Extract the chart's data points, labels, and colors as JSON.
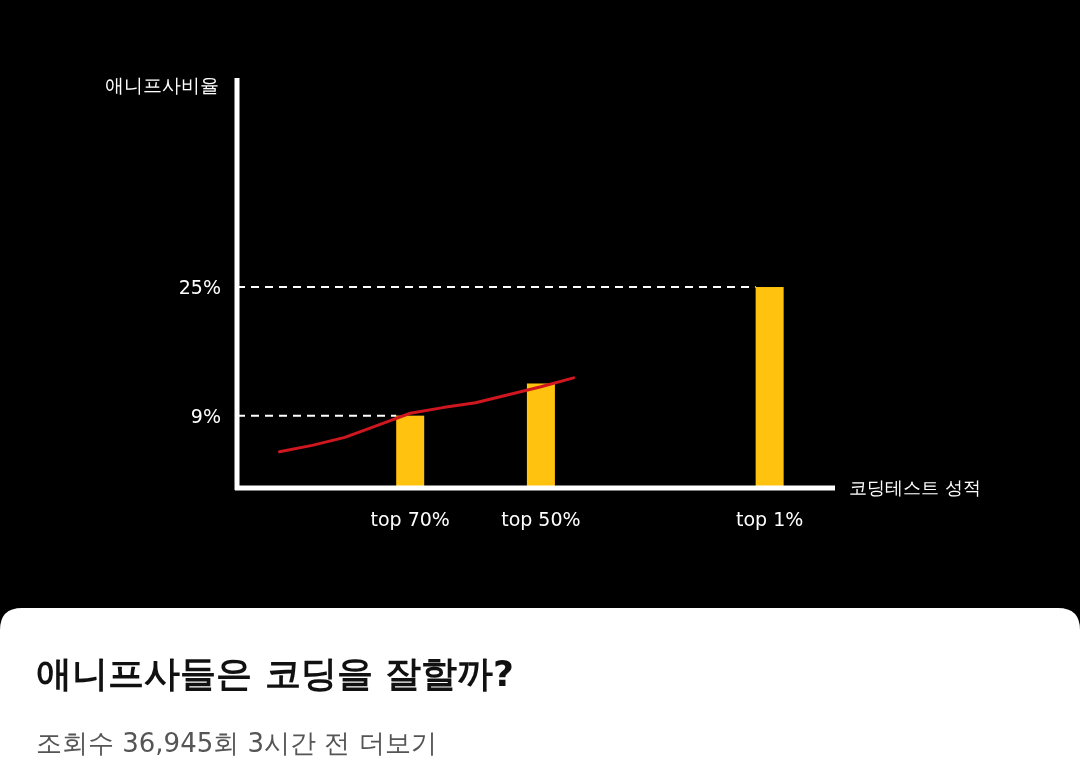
{
  "chart_data": {
    "type": "bar",
    "title": "애니프사들은 코딩을 잘할까?",
    "subtitle": "조회수 36,945회  3시간 전  더보기",
    "xlabel": "코딩테스트 성적",
    "ylabel": "애니프사비율",
    "categories": [
      null,
      null,
      null,
      null,
      "top 70%",
      null,
      null,
      null,
      "top 50%",
      null,
      null,
      null,
      null,
      null,
      null,
      "top 1%"
    ],
    "ylim": [
      0,
      51
    ],
    "yticks": [
      {
        "value": 9,
        "label": "9%"
      },
      {
        "value": 25,
        "label": "25%"
      }
    ],
    "series": [
      {
        "color": "#ffc20e",
        "values": [
          null,
          null,
          null,
          null,
          9,
          null,
          null,
          null,
          13,
          null,
          null,
          null,
          null,
          null,
          null,
          25
        ]
      },
      {
        "type": "line",
        "color": "#d0161e",
        "values": [
          4.5,
          5.3,
          6.3,
          7.8,
          9.3,
          10.0,
          10.6,
          11.6,
          12.6,
          13.7,
          null,
          null,
          null,
          null,
          null,
          null
        ]
      }
    ],
    "ref_lines": [
      {
        "axis": "y",
        "value": 9,
        "color": "#ffffff",
        "line_style": "dashed"
      },
      {
        "axis": "y",
        "value": 25,
        "color": "#ffffff",
        "line_style": "dashed"
      }
    ]
  }
}
